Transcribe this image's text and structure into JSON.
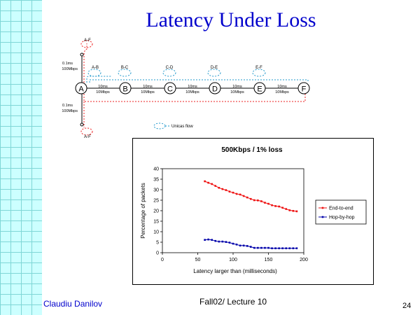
{
  "slide": {
    "title": "Latency Under Loss",
    "author": "Claudiu Danilov",
    "course": "Fall02/ Lecture 10",
    "page_number": "24"
  },
  "diagram": {
    "nodes": [
      "A",
      "B",
      "C",
      "D",
      "E",
      "F"
    ],
    "flows": [
      "A-B",
      "B-C",
      "C-D",
      "D-E",
      "E-F"
    ],
    "top_flow": "A-F",
    "bottom_flow": "A-F",
    "link_delay": "10ms",
    "link_bandwidth": "10Mbps",
    "access_delay": "0.1ms",
    "access_bandwidth": "100Mbps",
    "legend_label": "Unicas flow"
  },
  "chart_data": {
    "type": "line",
    "title": "500Kbps / 1% loss",
    "xlabel": "Latency larger than (milliseconds)",
    "ylabel": "Percentage of packets",
    "xlim": [
      0,
      200
    ],
    "ylim": [
      0,
      40
    ],
    "xticks": [
      "0",
      "50",
      "100",
      "150",
      "200"
    ],
    "yticks": [
      "0",
      "5",
      "10",
      "15",
      "20",
      "25",
      "30",
      "35",
      "40"
    ],
    "series": [
      {
        "name": "End-to-end",
        "color": "#ee1111",
        "x": [
          60,
          65,
          70,
          75,
          80,
          85,
          90,
          95,
          100,
          105,
          110,
          115,
          120,
          125,
          130,
          135,
          140,
          145,
          150,
          155,
          160,
          165,
          170,
          175,
          180,
          185,
          190
        ],
        "y": [
          34.0,
          33.3,
          32.7,
          31.8,
          30.9,
          30.3,
          29.8,
          29.1,
          28.6,
          28.0,
          27.7,
          27.0,
          26.3,
          25.6,
          25.0,
          24.9,
          24.5,
          23.8,
          23.3,
          22.6,
          22.2,
          22.0,
          21.4,
          20.8,
          20.2,
          19.9,
          19.7
        ]
      },
      {
        "name": "Hop-by-hop",
        "color": "#0000aa",
        "x": [
          60,
          65,
          70,
          75,
          80,
          85,
          90,
          95,
          100,
          105,
          110,
          115,
          120,
          125,
          130,
          135,
          140,
          145,
          150,
          155,
          160,
          165,
          170,
          175,
          180,
          185,
          190
        ],
        "y": [
          6.1,
          6.3,
          6.1,
          5.6,
          5.3,
          5.3,
          5.1,
          4.8,
          4.3,
          3.9,
          3.4,
          3.4,
          3.2,
          2.8,
          2.3,
          2.3,
          2.3,
          2.3,
          2.3,
          2.1,
          2.1,
          2.1,
          2.1,
          2.1,
          2.1,
          2.1,
          2.1
        ]
      }
    ],
    "legend_position": "right"
  }
}
